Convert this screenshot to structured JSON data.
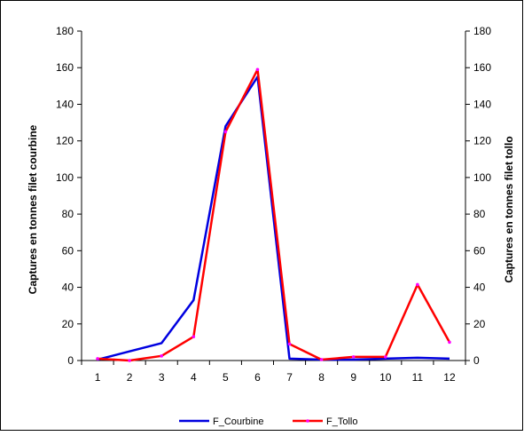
{
  "chart_data": {
    "type": "line",
    "title": "",
    "categories": [
      "1",
      "2",
      "3",
      "4",
      "5",
      "6",
      "7",
      "8",
      "9",
      "10",
      "11",
      "12"
    ],
    "ylabel_left": "Captures en tonnes filet courbine",
    "ylabel_right": "Captures en tonnes filet tollo",
    "ylim_left": [
      0,
      180
    ],
    "ylim_right": [
      0,
      180
    ],
    "yticks_left": [
      "0",
      "20",
      "40",
      "60",
      "80",
      "100",
      "120",
      "140",
      "160",
      "180"
    ],
    "yticks_right": [
      "0",
      "20",
      "40",
      "60",
      "80",
      "100",
      "120",
      "140",
      "160",
      "180"
    ],
    "grid": false,
    "legend_position": "bottom",
    "series": [
      {
        "name": "F_Courbine",
        "axis": "left",
        "color": "#0000e0",
        "values": [
          0.5,
          5,
          9.5,
          33,
          128,
          155,
          1,
          0.5,
          0.5,
          1,
          1.5,
          1
        ]
      },
      {
        "name": "F_Tollo",
        "axis": "right",
        "color": "#ff0000",
        "values": [
          1,
          0,
          2.5,
          13,
          125,
          159,
          9,
          0.5,
          2,
          2,
          41.5,
          10
        ]
      }
    ]
  }
}
